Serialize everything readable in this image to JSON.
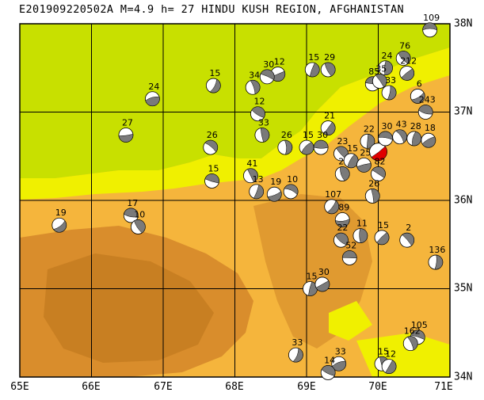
{
  "header": {
    "title": "E201909220502A M=4.9 h= 27 HINDU KUSH REGION, AFGHANISTAN"
  },
  "map": {
    "lon_range": [
      65,
      71
    ],
    "lat_range": [
      34,
      38
    ],
    "lon_labels": [
      "65E",
      "66E",
      "67E",
      "68E",
      "69E",
      "70E",
      "71E"
    ],
    "lat_labels": [
      "38N",
      "37N",
      "36N",
      "35N",
      "34N"
    ],
    "colors": {
      "lowland": "#c8e000",
      "low_hills": "#f0f000",
      "foothills": "#f5b53c",
      "mountains": "#e09a30",
      "high_mountains": "#c87f22",
      "gridline": "#000000",
      "main_event": "#e00000"
    }
  },
  "events": [
    {
      "lon": 70.72,
      "lat": 37.93,
      "depth": "109"
    },
    {
      "lon": 70.35,
      "lat": 37.61,
      "depth": "76"
    },
    {
      "lon": 70.1,
      "lat": 37.5,
      "depth": "24"
    },
    {
      "lon": 70.4,
      "lat": 37.44,
      "depth": "212"
    },
    {
      "lon": 69.92,
      "lat": 37.32,
      "depth": "85"
    },
    {
      "lon": 70.02,
      "lat": 37.35,
      "depth": "35"
    },
    {
      "lon": 70.15,
      "lat": 37.22,
      "depth": "33"
    },
    {
      "lon": 70.55,
      "lat": 37.18,
      "depth": "6"
    },
    {
      "lon": 70.66,
      "lat": 37.0,
      "depth": "243"
    },
    {
      "lon": 69.3,
      "lat": 37.48,
      "depth": "29"
    },
    {
      "lon": 69.08,
      "lat": 37.48,
      "depth": "15"
    },
    {
      "lon": 68.6,
      "lat": 37.43,
      "depth": "12"
    },
    {
      "lon": 68.45,
      "lat": 37.4,
      "depth": "30"
    },
    {
      "lon": 68.25,
      "lat": 37.28,
      "depth": "34"
    },
    {
      "lon": 67.7,
      "lat": 37.3,
      "depth": "15"
    },
    {
      "lon": 66.85,
      "lat": 37.15,
      "depth": "24"
    },
    {
      "lon": 68.32,
      "lat": 36.98,
      "depth": "12"
    },
    {
      "lon": 68.38,
      "lat": 36.74,
      "depth": "33"
    },
    {
      "lon": 69.3,
      "lat": 36.82,
      "depth": "21"
    },
    {
      "lon": 66.48,
      "lat": 36.74,
      "depth": "27"
    },
    {
      "lon": 67.66,
      "lat": 36.6,
      "depth": "26"
    },
    {
      "lon": 68.7,
      "lat": 36.6,
      "depth": "26"
    },
    {
      "lon": 69.0,
      "lat": 36.6,
      "depth": "15"
    },
    {
      "lon": 69.2,
      "lat": 36.6,
      "depth": "30"
    },
    {
      "lon": 69.48,
      "lat": 36.53,
      "depth": "23"
    },
    {
      "lon": 69.85,
      "lat": 36.67,
      "depth": "22"
    },
    {
      "lon": 70.0,
      "lat": 36.55,
      "depth": "",
      "main": true
    },
    {
      "lon": 70.1,
      "lat": 36.7,
      "depth": "30"
    },
    {
      "lon": 70.3,
      "lat": 36.72,
      "depth": "43"
    },
    {
      "lon": 70.5,
      "lat": 36.7,
      "depth": "28"
    },
    {
      "lon": 70.7,
      "lat": 36.68,
      "depth": "18"
    },
    {
      "lon": 67.68,
      "lat": 36.22,
      "depth": "15"
    },
    {
      "lon": 68.22,
      "lat": 36.28,
      "depth": "41"
    },
    {
      "lon": 68.3,
      "lat": 36.1,
      "depth": "13"
    },
    {
      "lon": 68.55,
      "lat": 36.07,
      "depth": "19"
    },
    {
      "lon": 68.78,
      "lat": 36.1,
      "depth": "10"
    },
    {
      "lon": 69.5,
      "lat": 36.3,
      "depth": "21"
    },
    {
      "lon": 69.62,
      "lat": 36.45,
      "depth": "15"
    },
    {
      "lon": 69.8,
      "lat": 36.4,
      "depth": "25"
    },
    {
      "lon": 70.0,
      "lat": 36.3,
      "depth": "82"
    },
    {
      "lon": 69.92,
      "lat": 36.05,
      "depth": "26"
    },
    {
      "lon": 69.35,
      "lat": 35.93,
      "depth": "107"
    },
    {
      "lon": 69.5,
      "lat": 35.78,
      "depth": "89"
    },
    {
      "lon": 69.48,
      "lat": 35.55,
      "depth": "22"
    },
    {
      "lon": 69.75,
      "lat": 35.6,
      "depth": "11"
    },
    {
      "lon": 70.05,
      "lat": 35.58,
      "depth": "15"
    },
    {
      "lon": 69.6,
      "lat": 35.35,
      "depth": "52"
    },
    {
      "lon": 70.4,
      "lat": 35.55,
      "depth": "2"
    },
    {
      "lon": 70.8,
      "lat": 35.3,
      "depth": "136"
    },
    {
      "lon": 65.55,
      "lat": 35.72,
      "depth": "19"
    },
    {
      "lon": 66.55,
      "lat": 35.83,
      "depth": "17"
    },
    {
      "lon": 66.65,
      "lat": 35.7,
      "depth": "10"
    },
    {
      "lon": 69.05,
      "lat": 35.0,
      "depth": "15"
    },
    {
      "lon": 69.22,
      "lat": 35.05,
      "depth": "30"
    },
    {
      "lon": 70.55,
      "lat": 34.45,
      "depth": "105"
    },
    {
      "lon": 70.45,
      "lat": 34.38,
      "depth": "162"
    },
    {
      "lon": 68.85,
      "lat": 34.25,
      "depth": "33"
    },
    {
      "lon": 69.45,
      "lat": 34.15,
      "depth": "33"
    },
    {
      "lon": 69.3,
      "lat": 34.05,
      "depth": "14"
    },
    {
      "lon": 70.05,
      "lat": 34.15,
      "depth": "15"
    },
    {
      "lon": 70.15,
      "lat": 34.12,
      "depth": "12"
    }
  ]
}
